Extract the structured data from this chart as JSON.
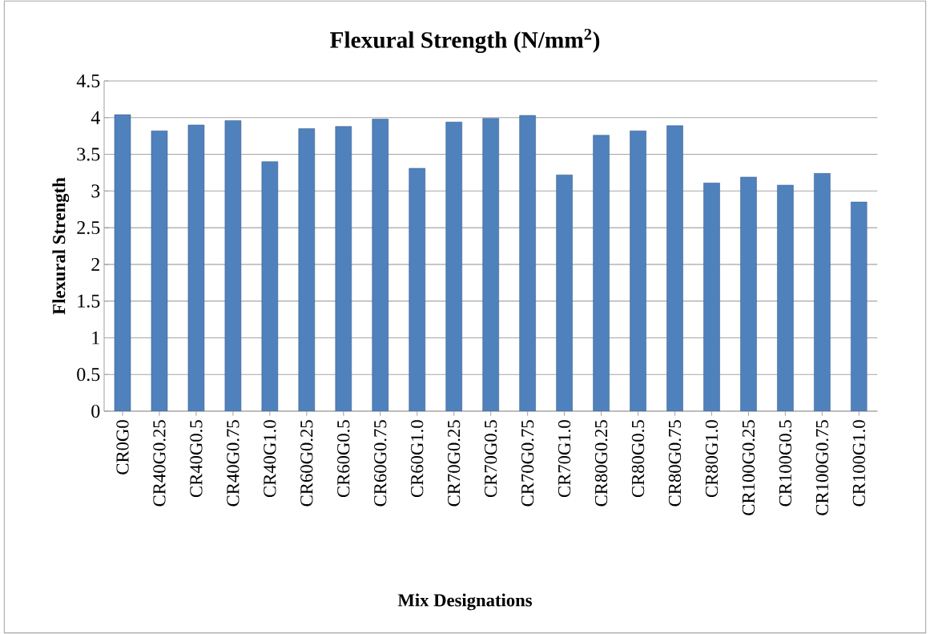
{
  "chart_data": {
    "type": "bar",
    "title": "Flexural Strength (N/mm$^{2}$)",
    "xlabel": "Mix Designations",
    "ylabel": "Flexural Strength",
    "categories": [
      "CR0G0",
      "CR40G0.25",
      "CR40G0.5",
      "CR40G0.75",
      "CR40G1.0",
      "CR60G0.25",
      "CR60G0.5",
      "CR60G0.75",
      "CR60G1.0",
      "CR70G0.25",
      "CR70G0.5",
      "CR70G0.75",
      "CR70G1.0",
      "CR80G0.25",
      "CR80G0.5",
      "CR80G0.75",
      "CR80G1.0",
      "CR100G0.25",
      "CR100G0.5",
      "CR100G0.75",
      "CR100G1.0"
    ],
    "values": [
      4.04,
      3.82,
      3.9,
      3.96,
      3.4,
      3.85,
      3.88,
      3.98,
      3.31,
      3.94,
      3.99,
      4.03,
      3.22,
      3.76,
      3.82,
      3.89,
      3.11,
      3.19,
      3.08,
      3.24,
      2.85
    ],
    "color": "#4f81bd",
    "ylim": [
      0,
      4.5
    ],
    "yticks": [
      0,
      0.5,
      1,
      1.5,
      2,
      2.5,
      3,
      3.5,
      4,
      4.5
    ],
    "grid": "y"
  }
}
